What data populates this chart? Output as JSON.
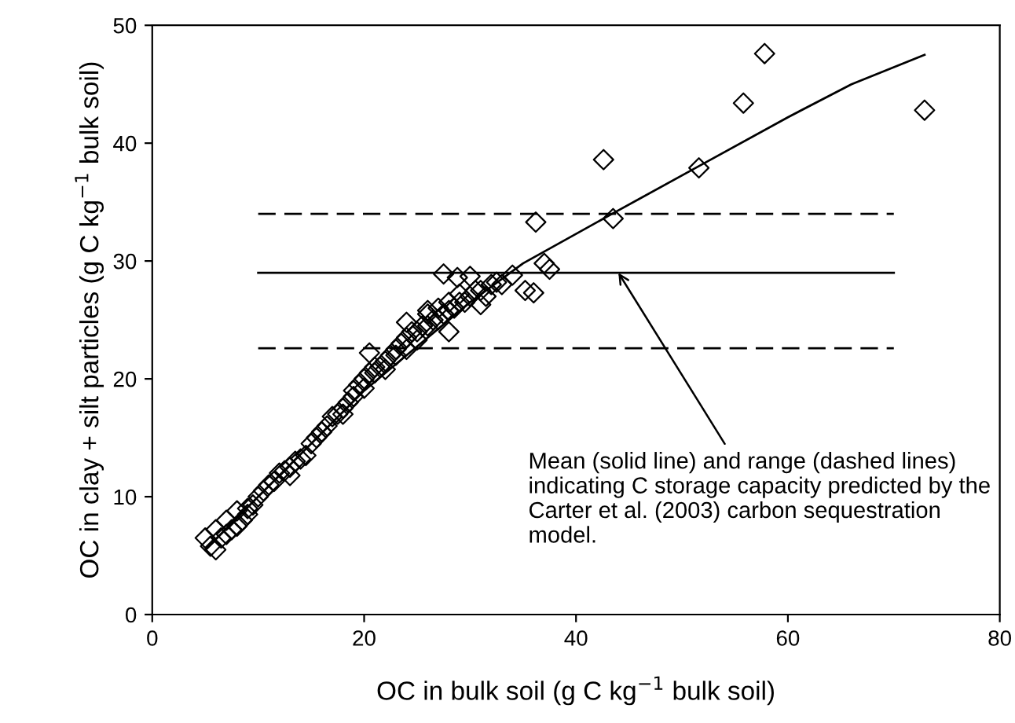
{
  "chart_data": {
    "type": "scatter",
    "xlabel": "OC in bulk soil (g C kg$^{−1}$ bulk soil)",
    "ylabel": "OC in clay + silt particles (g C kg$^{−1}$ bulk soil)",
    "xlim": [
      0,
      80
    ],
    "ylim": [
      0,
      50
    ],
    "xticks": [
      0,
      20,
      40,
      60,
      80
    ],
    "yticks": [
      0,
      10,
      20,
      30,
      40,
      50
    ],
    "marker": "diamond",
    "grid": false,
    "legend": false,
    "annotations": [
      {
        "text": "Mean (solid line) and range (dashed lines) indicating C storage capacity predicted by the Carter et al. (2003) carbon sequestration model.",
        "x": 44,
        "y": 29
      }
    ],
    "series": [
      {
        "color": "#000000",
        "x": [
          5,
          5.5,
          6,
          6,
          6.5,
          7,
          7,
          7.5,
          8,
          8,
          8.5,
          9,
          9,
          9.5,
          10,
          10.5,
          11,
          11.5,
          12,
          12.5,
          13,
          13,
          13.5,
          14,
          14.5,
          15,
          15.5,
          16,
          16.5,
          17,
          17.5,
          18,
          18.5,
          19,
          19,
          19.5,
          20,
          20,
          20.5,
          21,
          21,
          21.5,
          22,
          22,
          22.5,
          23,
          23,
          23.5,
          24,
          24,
          24.5,
          25,
          25,
          25.5,
          26,
          26,
          26.5,
          27,
          27,
          27.5,
          28,
          28,
          28.5,
          29,
          29,
          29.5,
          30,
          30.5,
          31,
          31.5,
          32,
          32.5,
          33,
          34,
          35.2,
          36,
          37,
          37.5,
          27.5,
          28.8,
          30,
          20.5,
          36.2,
          42.6,
          43.5,
          51.6,
          55.8,
          57.8,
          72.9,
          16,
          18,
          26,
          24,
          31,
          28
        ],
        "values": [
          6.5,
          5.8,
          7.2,
          5.5,
          6.5,
          8,
          6.8,
          7.2,
          7.5,
          8.8,
          8,
          8.5,
          9,
          9.3,
          10,
          10.5,
          11,
          11.3,
          12,
          12.2,
          12.5,
          11.8,
          13,
          13.2,
          13.5,
          14.5,
          15,
          15.5,
          16,
          16.8,
          17,
          17.5,
          18,
          18.5,
          19,
          19.5,
          20,
          19.2,
          20.5,
          20.5,
          21,
          21,
          21.5,
          20.8,
          22,
          22,
          22.5,
          23,
          22.5,
          23.5,
          24,
          24,
          23.3,
          24.5,
          24.5,
          25.5,
          25,
          25,
          26,
          25.5,
          25.8,
          26.5,
          26,
          26.5,
          27.2,
          26.5,
          27,
          27.5,
          27.5,
          27,
          28,
          28.2,
          28,
          28.8,
          27.5,
          27.3,
          29.8,
          29.3,
          28.9,
          28.6,
          28.7,
          22.2,
          33.3,
          38.6,
          33.6,
          37.9,
          43.4,
          47.6,
          42.8,
          15.5,
          17,
          25.8,
          24.8,
          26.3,
          24
        ]
      },
      {
        "type": "line",
        "color": "#000000",
        "marker": "none",
        "line_style": "solid",
        "x": [
          5,
          10,
          20,
          30,
          35,
          43.4,
          51.5,
          60,
          66,
          72.9
        ],
        "values": [
          5.5,
          10,
          19,
          26.5,
          29.8,
          34,
          38,
          42.2,
          45,
          47.5
        ]
      },
      {
        "type": "line",
        "color": "#000000",
        "marker": "none",
        "line_style": "solid",
        "x": [
          10,
          70
        ],
        "values": [
          29,
          29
        ]
      },
      {
        "type": "line",
        "color": "#000000",
        "marker": "none",
        "line_style": "dashed",
        "x": [
          10,
          70
        ],
        "values": [
          34,
          34
        ]
      },
      {
        "type": "line",
        "color": "#000000",
        "marker": "none",
        "line_style": "dashed",
        "x": [
          10,
          70
        ],
        "values": [
          22.6,
          22.6
        ]
      }
    ]
  }
}
